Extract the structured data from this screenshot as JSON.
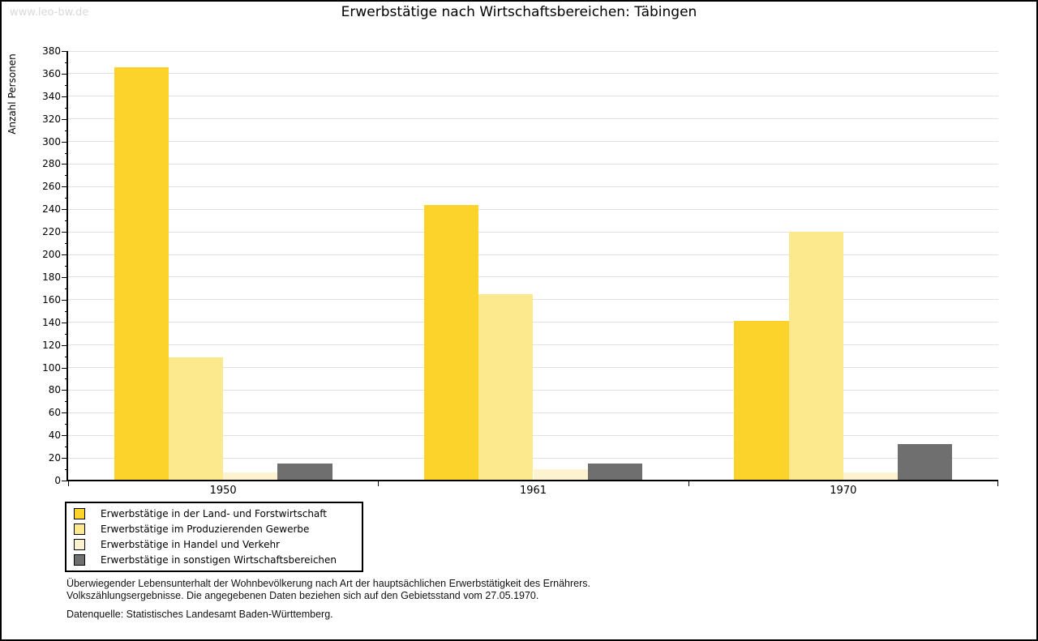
{
  "watermark": "www.leo-bw.de",
  "title": "Erwerbstätige nach Wirtschaftsbereichen: Täbingen",
  "chart_data": {
    "type": "bar",
    "categories": [
      "1950",
      "1961",
      "1970"
    ],
    "series": [
      {
        "name": "Erwerbstätige in der Land- und Forstwirtschaft",
        "color": "#fbd32b",
        "values": [
          366,
          244,
          141
        ]
      },
      {
        "name": "Erwerbstätige im Produzierenden Gewerbe",
        "color": "#fce98d",
        "values": [
          109,
          165,
          220
        ]
      },
      {
        "name": "Erwerbstätige in Handel und Verkehr",
        "color": "#fdf3d0",
        "values": [
          7,
          10,
          7
        ]
      },
      {
        "name": "Erwerbstätige in sonstigen Wirtschaftsbereichen",
        "color": "#6f6f6f",
        "values": [
          15,
          15,
          32
        ]
      }
    ],
    "title": "Erwerbstätige nach Wirtschaftsbereichen: Täbingen",
    "xlabel": "",
    "ylabel": "Anzahl Personen",
    "ylim": [
      0,
      380
    ],
    "ytick_major": 20,
    "ytick_minor": 10,
    "grid": true,
    "legend_position": "bottom-left"
  },
  "footnotes": {
    "line1": "Überwiegender Lebensunterhalt der Wohnbevölkerung nach Art der hauptsächlichen Erwerbstätigkeit des Ernährers.",
    "line2": "Volkszählungsergebnisse. Die angegebenen Daten beziehen sich auf den Gebietsstand vom 27.05.1970.",
    "source": "Datenquelle: Statistisches Landesamt Baden-Württemberg."
  }
}
